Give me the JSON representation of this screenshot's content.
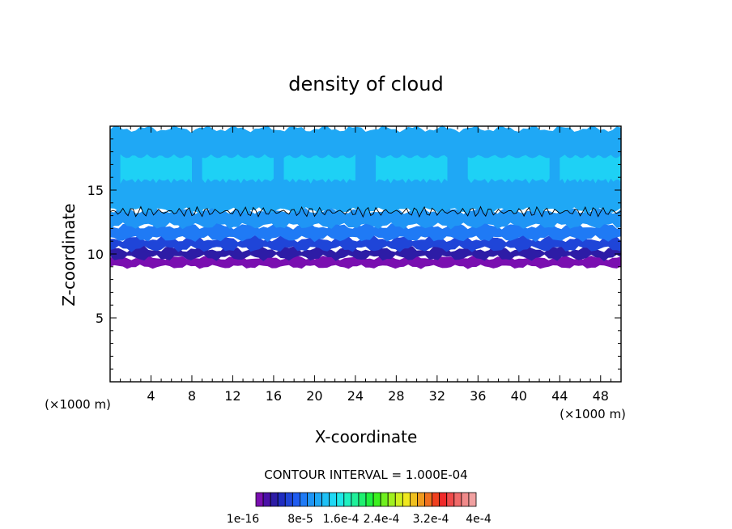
{
  "chart_data": {
    "type": "heatmap",
    "title": "density of cloud",
    "xlabel": "X-coordinate",
    "ylabel": "Z-coordinate",
    "x_unit_left": "(×1000 m)",
    "x_unit_right": "(×1000 m)",
    "xlim": [
      0,
      50
    ],
    "ylim": [
      0,
      20
    ],
    "x_ticks": [
      4,
      8,
      12,
      16,
      20,
      24,
      28,
      32,
      36,
      40,
      44,
      48
    ],
    "y_ticks": [
      5,
      10,
      15
    ],
    "contour_interval_text": "CONTOUR INTERVAL = 1.000E-04",
    "colorbar": {
      "colors": [
        "#7a0fb0",
        "#4b10a8",
        "#2d1ca6",
        "#1f2cc0",
        "#1f45d8",
        "#1f5cf0",
        "#1f7af5",
        "#1f95f5",
        "#1fa8f5",
        "#1fc0f5",
        "#1fd8f5",
        "#1fe8e8",
        "#1ff0c0",
        "#1ff09a",
        "#1ff070",
        "#1ff040",
        "#3cf01f",
        "#70f01f",
        "#a0f01f",
        "#d0f01f",
        "#f0e81f",
        "#f0c01f",
        "#f09a1f",
        "#f0701f",
        "#f0401f",
        "#f02a2a",
        "#f04a4a",
        "#f06a6a",
        "#f08a8a",
        "#f0a0a0"
      ],
      "labels": [
        "1e-16",
        "8e-5",
        "1.6e-4",
        "2.4e-4",
        "3.2e-4",
        "4e-4"
      ]
    },
    "cloud_layers": [
      {
        "z_bottom": 9.0,
        "z_top": 9.7,
        "color": "#7a0fb0"
      },
      {
        "z_bottom": 9.7,
        "z_top": 10.4,
        "color": "#2d1ca6"
      },
      {
        "z_bottom": 10.4,
        "z_top": 11.2,
        "color": "#1f45d8"
      },
      {
        "z_bottom": 11.2,
        "z_top": 12.2,
        "color": "#1f7af5"
      },
      {
        "z_bottom": 12.2,
        "z_top": 13.4,
        "color": "#1f95f5"
      },
      {
        "z_bottom": 13.4,
        "z_top": 19.8,
        "color": "#1fa8f5"
      },
      {
        "z_bottom": 15.5,
        "z_top": 17.8,
        "color": "#1fd8f5"
      }
    ]
  }
}
